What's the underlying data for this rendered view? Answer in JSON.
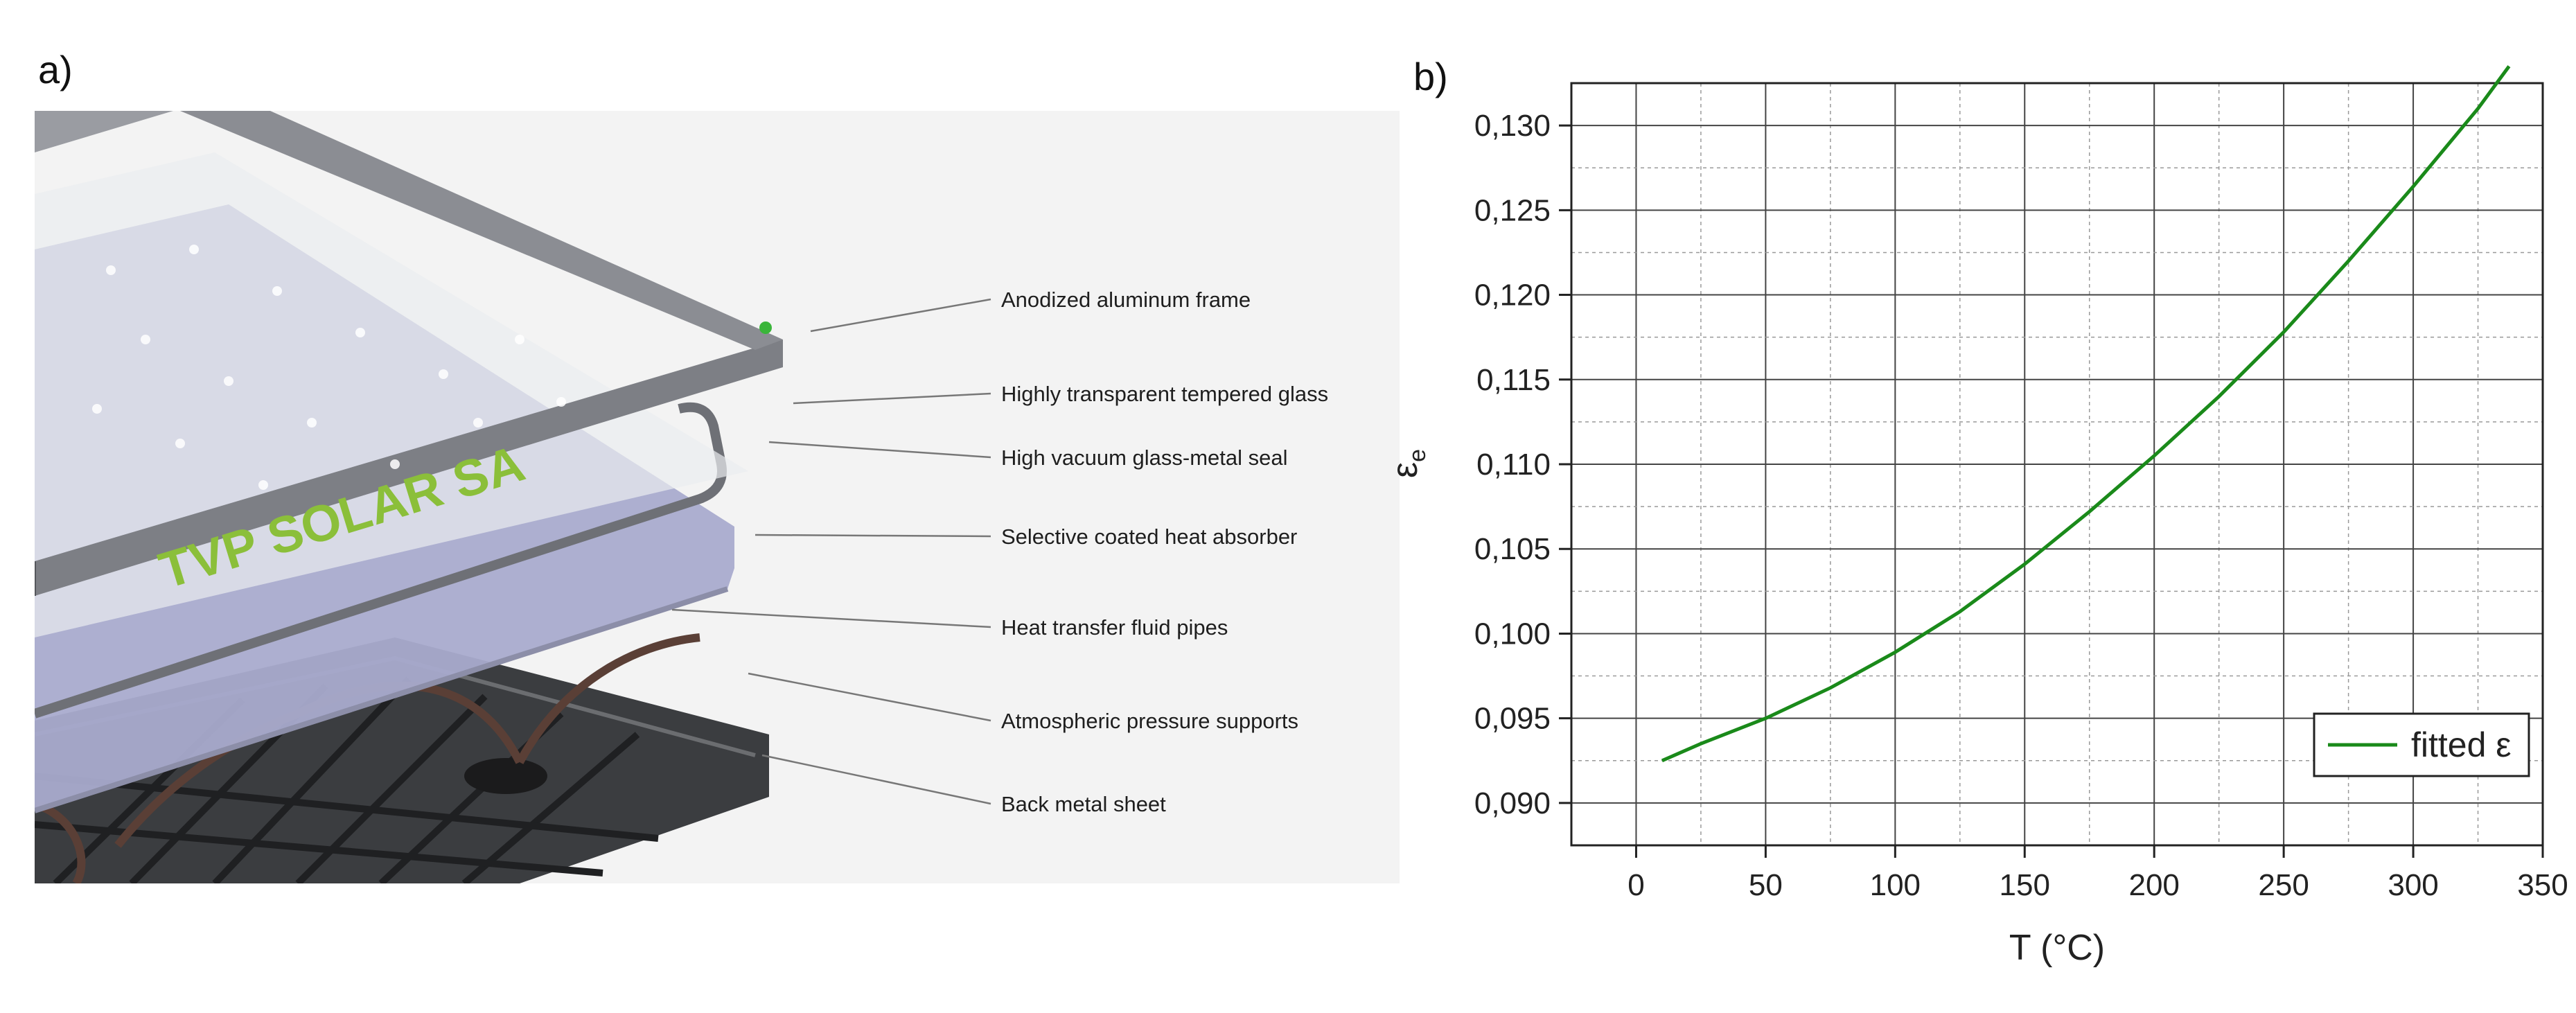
{
  "panels": {
    "a": "a)",
    "b": "b)"
  },
  "illustration": {
    "frame_text": "TVP SOLAR SA",
    "callouts": [
      "Anodized aluminum frame",
      "Highly transparent tempered glass",
      "High vacuum glass-metal seal",
      "Selective coated heat absorber",
      "Heat transfer fluid pipes",
      "Atmospheric pressure supports",
      "Back metal sheet"
    ]
  },
  "chart_data": {
    "type": "line",
    "xlabel": "T (°C)",
    "ylabel": "εe",
    "xlim": [
      -25,
      350
    ],
    "ylim": [
      0.0875,
      0.1325
    ],
    "xticks": [
      0,
      50,
      100,
      150,
      200,
      250,
      300,
      350
    ],
    "xtick_labels": [
      "0",
      "50",
      "100",
      "150",
      "200",
      "250",
      "300",
      "350"
    ],
    "yticks": [
      0.09,
      0.095,
      0.1,
      0.105,
      0.11,
      0.115,
      0.12,
      0.125,
      0.13
    ],
    "ytick_labels": [
      "0,090",
      "0,095",
      "0,100",
      "0,105",
      "0,110",
      "0,115",
      "0,120",
      "0,125",
      "0,130"
    ],
    "grid": true,
    "legend_position": "bottom-right",
    "series": [
      {
        "name": "fitted ε",
        "color": "#1a8a1a",
        "x": [
          10,
          25,
          50,
          75,
          100,
          125,
          150,
          175,
          200,
          225,
          250,
          275,
          300,
          325,
          337
        ],
        "y": [
          0.0925,
          0.0935,
          0.095,
          0.0968,
          0.0989,
          0.1013,
          0.1041,
          0.1072,
          0.1105,
          0.114,
          0.1178,
          0.122,
          0.1264,
          0.131,
          0.1335
        ]
      }
    ]
  },
  "colors": {
    "frame": "#7d7f85",
    "frame_text": "#8bbf3a",
    "absorber": "#a4a6c8",
    "glass": "#e9eef0",
    "background_panel": "#f1f1f1",
    "curve": "#1a8a1a"
  }
}
